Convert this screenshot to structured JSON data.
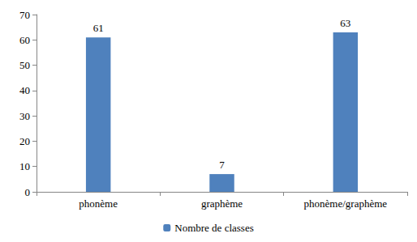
{
  "chart_data": {
    "type": "bar",
    "categories": [
      "phonème",
      "graphème",
      "phonème/graphème"
    ],
    "series": [
      {
        "name": "Nombre de classes",
        "color": "#4f81bd",
        "values": [
          61,
          7,
          63
        ]
      }
    ],
    "ylim": [
      0,
      70
    ],
    "yticks": [
      0,
      10,
      20,
      30,
      40,
      50,
      60,
      70
    ],
    "grid": false,
    "legend": "bottom",
    "data_labels": true
  }
}
